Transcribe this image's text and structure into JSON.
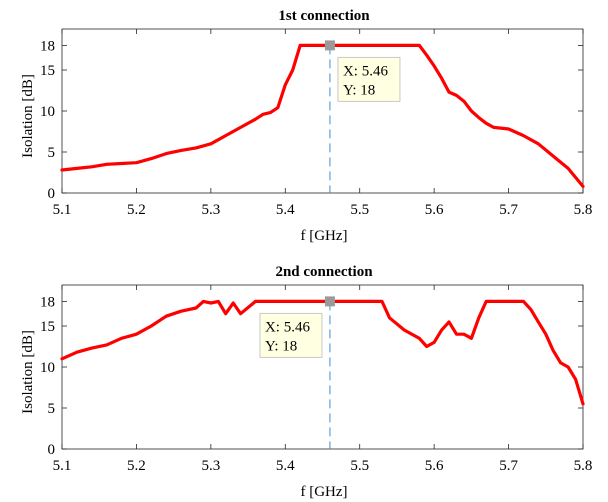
{
  "chart_data": [
    {
      "type": "line",
      "title": "1st connection",
      "xlabel": "f [GHz]",
      "ylabel": "Isolation [dB]",
      "xlim": [
        5.1,
        5.8
      ],
      "ylim": [
        0,
        20
      ],
      "xticks": [
        5.1,
        5.2,
        5.3,
        5.4,
        5.5,
        5.6,
        5.7,
        5.8
      ],
      "xtick_labels": [
        "5.1",
        "5.2",
        "5.3",
        "5.4",
        "5.5",
        "5.6",
        "5.7",
        "5.8"
      ],
      "yticks": [
        0,
        5,
        10,
        15,
        18
      ],
      "ytick_labels": [
        "0",
        "5",
        "10",
        "15",
        "18"
      ],
      "series_color": "#ff0000",
      "grid": false,
      "series": [
        {
          "x": [
            5.1,
            5.12,
            5.14,
            5.16,
            5.18,
            5.2,
            5.22,
            5.24,
            5.26,
            5.28,
            5.3,
            5.32,
            5.34,
            5.36,
            5.37,
            5.38,
            5.39,
            5.4,
            5.41,
            5.42,
            5.43,
            5.44,
            5.46,
            5.48,
            5.5,
            5.52,
            5.54,
            5.56,
            5.58,
            5.59,
            5.6,
            5.61,
            5.62,
            5.63,
            5.64,
            5.65,
            5.66,
            5.67,
            5.68,
            5.7,
            5.72,
            5.74,
            5.76,
            5.78,
            5.8
          ],
          "y": [
            2.8,
            3.0,
            3.2,
            3.5,
            3.6,
            3.7,
            4.2,
            4.8,
            5.2,
            5.5,
            6.0,
            7.0,
            8.0,
            9.0,
            9.6,
            9.8,
            10.4,
            13.2,
            15.0,
            18.0,
            18.0,
            18.0,
            18.0,
            18.0,
            18.0,
            18.0,
            18.0,
            18.0,
            18.0,
            16.8,
            15.5,
            14.0,
            12.3,
            11.9,
            11.2,
            10.0,
            9.2,
            8.5,
            8.0,
            7.8,
            7.0,
            6.0,
            4.5,
            3.0,
            0.8
          ]
        }
      ],
      "datatip": {
        "x_text": "X: 5.46",
        "y_text": "Y: 18",
        "x": 5.46,
        "y": 18
      }
    },
    {
      "type": "line",
      "title": "2nd connection",
      "xlabel": "f [GHz]",
      "ylabel": "Isolation [dB]",
      "xlim": [
        5.1,
        5.8
      ],
      "ylim": [
        0,
        20
      ],
      "xticks": [
        5.1,
        5.2,
        5.3,
        5.4,
        5.5,
        5.6,
        5.7,
        5.8
      ],
      "xtick_labels": [
        "5.1",
        "5.2",
        "5.3",
        "5.4",
        "5.5",
        "5.6",
        "5.7",
        "5.8"
      ],
      "yticks": [
        0,
        5,
        10,
        15,
        18
      ],
      "ytick_labels": [
        "0",
        "5",
        "10",
        "15",
        "18"
      ],
      "series_color": "#ff0000",
      "grid": false,
      "series": [
        {
          "x": [
            5.1,
            5.12,
            5.14,
            5.16,
            5.18,
            5.2,
            5.22,
            5.24,
            5.26,
            5.28,
            5.29,
            5.3,
            5.31,
            5.32,
            5.33,
            5.34,
            5.36,
            5.38,
            5.4,
            5.42,
            5.44,
            5.46,
            5.48,
            5.5,
            5.52,
            5.53,
            5.54,
            5.56,
            5.58,
            5.59,
            5.6,
            5.61,
            5.62,
            5.63,
            5.64,
            5.65,
            5.66,
            5.67,
            5.68,
            5.7,
            5.72,
            5.73,
            5.74,
            5.75,
            5.76,
            5.77,
            5.78,
            5.79,
            5.8
          ],
          "y": [
            11.0,
            11.8,
            12.3,
            12.7,
            13.5,
            14.0,
            15.0,
            16.2,
            16.8,
            17.2,
            18.0,
            17.8,
            18.0,
            16.5,
            17.8,
            16.5,
            18.0,
            18.0,
            18.0,
            18.0,
            18.0,
            18.0,
            18.0,
            18.0,
            18.0,
            18.0,
            16.0,
            14.5,
            13.5,
            12.5,
            13.0,
            14.5,
            15.5,
            14.0,
            14.0,
            13.5,
            16.0,
            18.0,
            18.0,
            18.0,
            18.0,
            17.0,
            15.5,
            14.0,
            12.0,
            10.5,
            10.0,
            8.5,
            5.5
          ]
        }
      ],
      "datatip": {
        "x_text": "X: 5.46",
        "y_text": "Y: 18",
        "x": 5.46,
        "y": 18
      }
    }
  ]
}
